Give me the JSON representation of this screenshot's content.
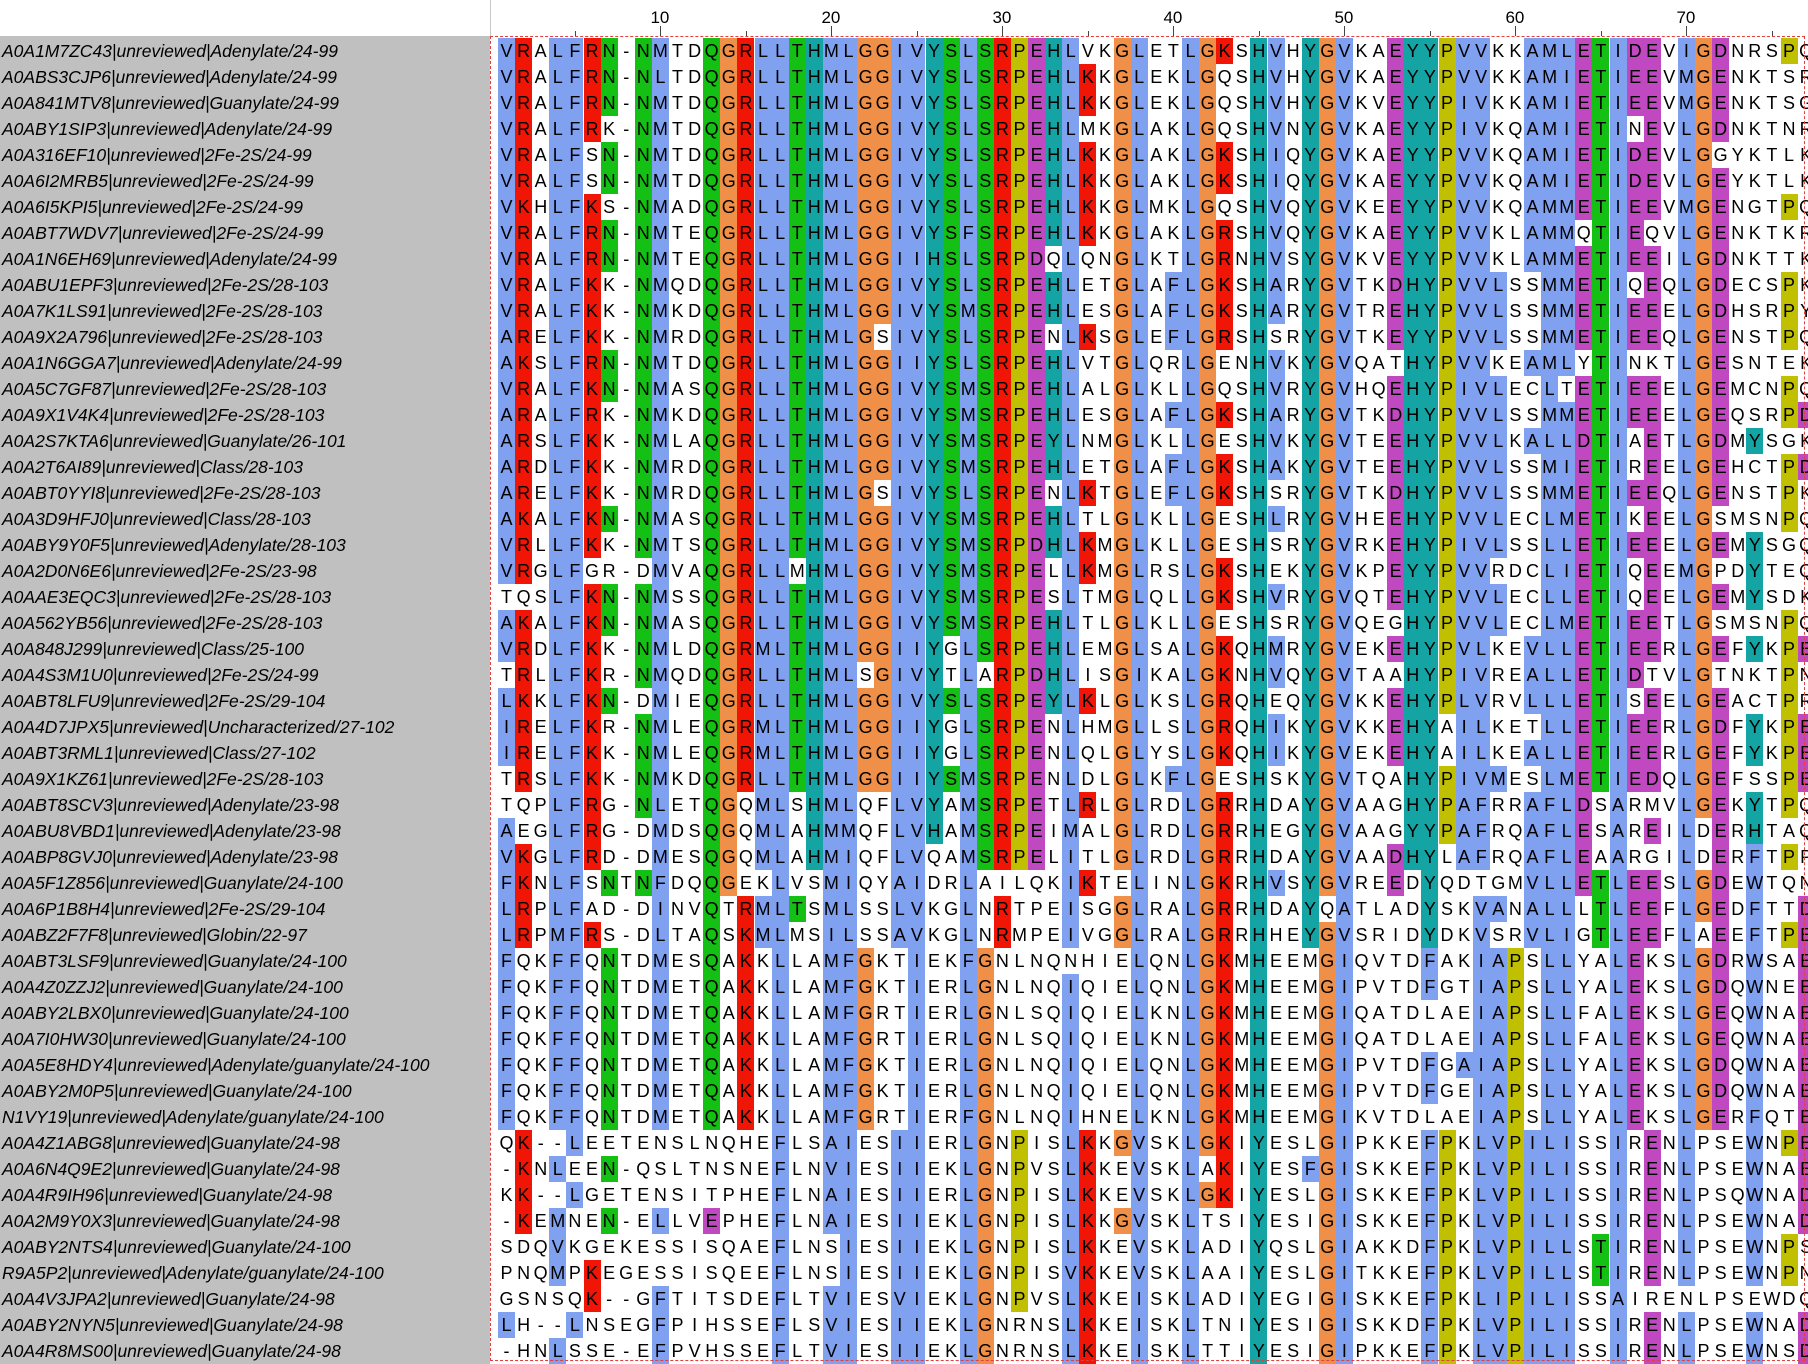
{
  "ruler": {
    "labels": [
      "10",
      "20",
      "30",
      "40",
      "50",
      "60",
      "70"
    ]
  },
  "colors": {
    "hydrophobic": "#80a0f0",
    "positive": "#f01505",
    "negative": "#c048c0",
    "polar": "#15c015",
    "cysteine": "#f08080",
    "glycine": "#f09048",
    "proline": "#c0c000",
    "aromatic": "#15a4a4"
  },
  "sequences": [
    {
      "name": "A0A1M7ZC43|unreviewed|Adenylate/24-99",
      "residues": "VRALFRN-NMTDQGRLLTHMLGGIVYSLSRPEHLVKGLETLGKSHVHYGVKAEYYPVVKKAMLETIDEVIGDNRSPQ"
    },
    {
      "name": "A0ABS3CJP6|unreviewed|Adenylate/24-99",
      "residues": "VRALFRN-NLTDQGRLLTHMLGGIVYSLSRPEHLKKGLEKLGQSHVHYGVKAEYYPVVKKAMIETIEEVMGENKTSR"
    },
    {
      "name": "A0A841MTV8|unreviewed|Guanylate/24-99",
      "residues": "VRALFRN-NMTDQGRLLTHMLGGIVYSLSRPEHLKKGLEKLGQSHVHYGVKVEYYPIVKKAMIETIEEVMGENKTSG"
    },
    {
      "name": "A0ABY1SIP3|unreviewed|Adenylate/24-99",
      "residues": "VRALFRK-NMTDQGRLLTHMLGGIVYSLSRPEHLMKGLAKLGQSHVNYGVKAEYYPIVKQAMIETINEVLGDNKTNR"
    },
    {
      "name": "A0A316EF10|unreviewed|2Fe-2S/24-99",
      "residues": "VRALFSN-NMTDQGRLLTHMLGGIVYSLSRPEHLKKGLAKLGKSHIQYGVKAEYYPVVKQAMIETIDEVLGGYKTLK"
    },
    {
      "name": "A0A6I2MRB5|unreviewed|2Fe-2S/24-99",
      "residues": "VRALFSN-NMTDQGRLLTHMLGGIVYSLSRPEHLKKGLAKLGKSHIQYGVKAEYYPVVKQAMIETIDEVLGEYKTLK"
    },
    {
      "name": "A0A6I5KPI5|unreviewed|2Fe-2S/24-99",
      "residues": "VKHLFKS-NMADQGRLLTHMLGGIVYSLSRPEHLKKGLMKLGQSHVQYGVKEEYYPVVKQAMMETIEEVMGENGTPQ"
    },
    {
      "name": "A0ABT7WDV7|unreviewed|2Fe-2S/24-99",
      "residues": "VRALFRN-NMTEQGRLLTHMLGGIVYSFSRPEHLKKGLAKLGRSHVQYGVKAEYYPVVKLAMMQTIEQVLGENKTKR"
    },
    {
      "name": "A0A1N6EH69|unreviewed|Adenylate/24-99",
      "residues": "VRALFRN-NMTEQGRLLTHMLGGIIHSLSRPDQLQNGLKTLGRNHVSYGVKVEYYPVVKLAMMETIEEILGDNKTTK"
    },
    {
      "name": "A0ABU1EPF3|unreviewed|2Fe-2S/28-103",
      "residues": "VRALFKK-NMQDQGRLLTHMLGGIVYSLSRPEHLETGLAFLGKSHARYGVTKDHYPVVLSSMMETIQEQLGDECSPK"
    },
    {
      "name": "A0A7K1LS91|unreviewed|2Fe-2S/28-103",
      "residues": "VRALFKK-NMKDQGRLLTHMLGGIVYSMSRPEHLESGLAFLGKSHARYGVTREHYPVVLSSMMETIEEELGDHSRPY"
    },
    {
      "name": "A0A9X2A796|unreviewed|2Fe-2S/28-103",
      "residues": "ARELFKK-NMRDQGRLLTHMLGSIVYSLSRPENLKSGLEFLGRSHSRYGVTKEYYPVVLSSMMETIEEQLGENSTPQ"
    },
    {
      "name": "A0A1N6GGA7|unreviewed|Adenylate/24-99",
      "residues": "AKSLFRN-NMTDQGRLLTHMLGGIIYSLSRPEHLVTGLQRLGENHVKYGVQATHYPVVKEAMLYTINKTLGESNTEK"
    },
    {
      "name": "A0A5C7GF87|unreviewed|2Fe-2S/28-103",
      "residues": "VRALFKN-NMASQGRLLTHMLGGIVYSMSRPEHLALGLKLLGQSHVRYGVHQEHYPIVLECLTETIEEELGEMCNPQ"
    },
    {
      "name": "A0A9X1V4K4|unreviewed|2Fe-2S/28-103",
      "residues": "ARALFRK-NMKDQGRLLTHMLGGIVYSMSRPEHLESGLAFLGKSHARYGVTKDHYPVVLSSMMETIEEELGEQSRPD"
    },
    {
      "name": "A0A2S7KTA6|unreviewed|Guanylate/26-101",
      "residues": "ARSLFKK-NMLAQGRLLTHMLGGIVYSMSRPEYLNMGLKLLGESHVKYGVTEEHYPVVLKALLDTIAETLGDMYSGK"
    },
    {
      "name": "A0A2T6AI89|unreviewed|Class/28-103",
      "residues": "ARDLFKK-NMRDQGRLLTHMLGGIVYSMSRPEHLETGLAFLGKSHAKYGVTEEHYPVVLSSMIETIREELGEHCTPD"
    },
    {
      "name": "A0ABT0YYI8|unreviewed|2Fe-2S/28-103",
      "residues": "ARELFKK-NMRDQGRLLTHMLGSIVYSLSRPENLKTGLEFLGKSHSRYGVTKDHYPVVLSSMMETIEEQLGENSTPK"
    },
    {
      "name": "A0A3D9HFJ0|unreviewed|Class/28-103",
      "residues": "AKALFKN-NMASQGRLLTHMLGGIVYSMSRPEHLTLGLKLLGESHLRYGVHEEHYPVVLECLMETIKEELGSMSNPQ"
    },
    {
      "name": "A0ABY9Y0F5|unreviewed|Adenylate/28-103",
      "residues": "VRLLFKK-NMTSQGRLLTHMLGGIVYSMSRPDHLKMGLKLLGESHSRYGVRKEHYPIVLSSLLETIEEELGEMYSGQ"
    },
    {
      "name": "A0A2D0N6E6|unreviewed|2Fe-2S/23-98",
      "residues": "VRGLFGR-DMVAQGRLLMHMLGGIVYSMSRPELLKMGLRSLGKSHEKYGVKPEYYPVVRDCLIETIQEEMGPDYTEQ"
    },
    {
      "name": "A0AAE3EQC3|unreviewed|2Fe-2S/28-103",
      "residues": "TQSLFKN-NMSSQGRLLTHMLGGIVYSMSRPESLTMGLQLLGKSHVRYGVQTEHYPVVLECLLETIQEELGEMYSDK"
    },
    {
      "name": "A0A562YB56|unreviewed|2Fe-2S/28-103",
      "residues": "AKALFKN-NMASQGRLLTHMLGGIVYSMSRPEHLTLGLKLLGESHSRYGVQEGHYPVVLECLMETIEETLGSMSNPQ"
    },
    {
      "name": "A0A848J299|unreviewed|Class/25-100",
      "residues": "VRDLFKK-NMLDQGRMLTHMLGGIIYGLSRPEHLEMGLSALGKQHMRYGVEKEHYPVLKEVLLETIEERLGEFYKPE"
    },
    {
      "name": "A0A4S3M1U0|unreviewed|2Fe-2S/24-99",
      "residues": "TRLLFKR-NMQDQGRLLTHMLSGIVYTLARPDHLISGIKALGKNHVQYGVTAAHYPIVREALLETIDTVLGTNKTPN"
    },
    {
      "name": "A0ABT8LFU9|unreviewed|2Fe-2S/29-104",
      "residues": "LKKLFKN-DMIEQGRLLTHMLGGIVYSLSRPEYLKLGLKSLGRQHEQYGVKKEHYPLVRVLLLETISEELGEACTPR"
    },
    {
      "name": "A0A4D7JPX5|unreviewed|Uncharacterized/27-102",
      "residues": "IRELFKR-NMLEQGRMLTHMLGGIIYGLSRPENLHMGLLSLGRQHIKYGVKKEHYAILKETLLETIEERLGDFYKPE"
    },
    {
      "name": "A0ABT3RML1|unreviewed|Class/27-102",
      "residues": "IRELFKK-NMLEQGRMLTHMLGGIIYGLSRPENLQLGLYSLGKQHIKYGVEKEHYAILKEALLETIEERLGEFYKPE"
    },
    {
      "name": "A0A9X1KZ61|unreviewed|2Fe-2S/28-103",
      "residues": "TRSLFKK-NMKDQGRLLTHMLGGIIYSMSRPENLDLGLKFLGESHSKYGVTQAHYPIVMESLMETIEDQLGEFSSPE"
    },
    {
      "name": "A0ABT8SCV3|unreviewed|Adenylate/23-98",
      "residues": "TQPLFRG-NLETQGQMLSHMLQFLVYAMSRPETLRLGLRDLGRRHDAYGVAAGHYPAFRRAFLDSARMVLGEKYTPQ"
    },
    {
      "name": "A0ABU8VBD1|unreviewed|Adenylate/23-98",
      "residues": "AEGLFRG-DMDSQGQMLAHMMQFLVHAMSRPEIMALGLRDLGRRHEGYGVAAGYYPAFRQAFLESAREILDERHTAQ"
    },
    {
      "name": "A0ABP8GVJ0|unreviewed|Adenylate/23-98",
      "residues": "VKGLFRD-DMESQGQMLAHMIQFLVQAMSRPELITLGLRDLGRRHDAYGVAADHYLAFRQAFLEAARGILDERFTPP"
    },
    {
      "name": "A0A5F1Z856|unreviewed|Guanylate/24-100",
      "residues": "FKNLFSNTNFDQQGEKLVSMIQYAIDRLAILQKIKTELINLGKRHVSYGVREEDYQDTGMVLLETLEESLGDEWTQN"
    },
    {
      "name": "A0A6P1B8H4|unreviewed|2Fe-2S/29-104",
      "residues": "LRPLFAD-DINVQTRMLTSMLSSLVKGLNRTPEISGGLRALGRRHDAYQATLADYSKVANALLLTLEEFLGEDFTTD"
    },
    {
      "name": "A0ABZ2F7F8|unreviewed|Globin/22-97",
      "residues": "LRPMFRS-DLTAQSKMLMSILSSAVKGLNRMPEIVGGLRALGRRHHEYGVSRIDYDKVSRVLIGTLEEFLAEEFTPE"
    },
    {
      "name": "A0ABT3LSF9|unreviewed|Guanylate/24-100",
      "residues": "FQKFFQNTDMESQAKKLLAMFGKTIEKFGNLNQNHIELQNLGKMHEEMGIQVTDFAKIAPSLLYALEKSLGDRWSAE"
    },
    {
      "name": "A0A4Z0ZZJ2|unreviewed|Guanylate/24-100",
      "residues": "FQKFFQNTDMETQAKKLLAMFGKTIERLGNLNQIQIELQNLGKMHEEMGIPVTDFGTIAPSLLYALEKSLGDQWNEE"
    },
    {
      "name": "A0ABY2LBX0|unreviewed|Guanylate/24-100",
      "residues": "FQKFFQNTDMETQAKKLLAMFGRTIERLGNLSQIQIELKNLGKMHEEMGIQATDLAEIAPSLLFALEKSLGEQWNAE"
    },
    {
      "name": "A0A7I0HW30|unreviewed|Guanylate/24-100",
      "residues": "FQKFFQNTDMETQAKKLLAMFGRTIERLGNLSQIQIELKNLGKMHEEMGIQATDLAEIAPSLLFALEKSLGEQWNAE"
    },
    {
      "name": "A0A5E8HDY4|unreviewed|Adenylate/guanylate/24-100",
      "residues": "FQKFFQNTDMETQAKKLLAMFGKTIERLGNLNQIQIELQNLGKMHEEMGIPVTDFGAIAPSLLYALEKSLGDQWNAE"
    },
    {
      "name": "A0ABY2M0P5|unreviewed|Guanylate/24-100",
      "residues": "FQKFFQNTDMETQAKKLLAMFGKTIERLGNLNQIQIELQNLGKMHEEMGIPVTDFGEIAPSLLYALEKSLGDQWNAE"
    },
    {
      "name": "N1VY19|unreviewed|Adenylate/guanylate/24-100",
      "residues": "FQKFFQNTDMETQAKKLLAMFGRTIERFGNLNQIHNELKNLGKMHEEMGIKVTDLAEIAPSLLYALEKSLGERFQTE"
    },
    {
      "name": "A0A4Z1ABG8|unreviewed|Guanylate/24-98",
      "residues": "QK--LEETENSLNQHEFLSAIESIIERLGNPISLKKGVSKLGKIYESLGIPKKEFPKLVPILISSIRENLPSEWNPE"
    },
    {
      "name": "A0A6N4Q9E2|unreviewed|Guanylate/24-98",
      "residues": "-KNLEEN-QSLTNSNEFLNVIESIIEKLGNPVSLKKEVSKLAKIYESFGISKKEFPKLVPILISSIRENLPSEWNAE"
    },
    {
      "name": "A0A4R9IH96|unreviewed|Guanylate/24-98",
      "residues": "KK--LGETENSITPHEFLNAIESIIERLGNPISLKKEVSKLGKIYESLGISKKEFPKLVPILISSIRENLPSQWNAD"
    },
    {
      "name": "A0A2M9Y0X3|unreviewed|Guanylate/24-98",
      "residues": "-KEMNEN-ELLVEPHEFLNAIESIIEKLGNPISLKKGVSKLTSIYESIGISKKEFPKLVPILISSIRENLPSEWNAD"
    },
    {
      "name": "A0ABY2NTS4|unreviewed|Guanylate/24-100",
      "residues": "SDQVKGEKESSISQAEFLNSIESIIEKLGNPISLKKEVSKLADIYQSLGIAKKDFPKLVPILLSTIRENLPSEWNPS"
    },
    {
      "name": "R9A5P2|unreviewed|Adenylate/guanylate/24-100",
      "residues": "PNQMPKEGESSISQEEFLNSIESIIEKLGNPISVKKEVSKLAAIYESLGITKKEFPKLVPILLSTIRENLPSEWNPN"
    },
    {
      "name": "A0A4V3JPA2|unreviewed|Guanylate/24-98",
      "residues": "GSNSQK--GFTITSDEFLTVIESVIEKLGNPVSLKKEISKLADIYEGIGISKKEFPKLIPILISSAIRENLPSEWDQN"
    },
    {
      "name": "A0ABY2NYN5|unreviewed|Guanylate/24-98",
      "residues": "LH--LNSEGFPIHSSEFLSVIESIIEKLGNRNSLKKEISKLTNIYESIGISKKDFPKLVPILISSIRENLPSEWNAD"
    },
    {
      "name": "A0A4R8MS00|unreviewed|Guanylate/24-98",
      "residues": "-HNLSSE-EFPVHSSEFLTVIESIIEKLGNRNSLKKEISKLTTIYESIGIPKKEFPKLVPILISSIRENLPSEWNSD"
    }
  ]
}
